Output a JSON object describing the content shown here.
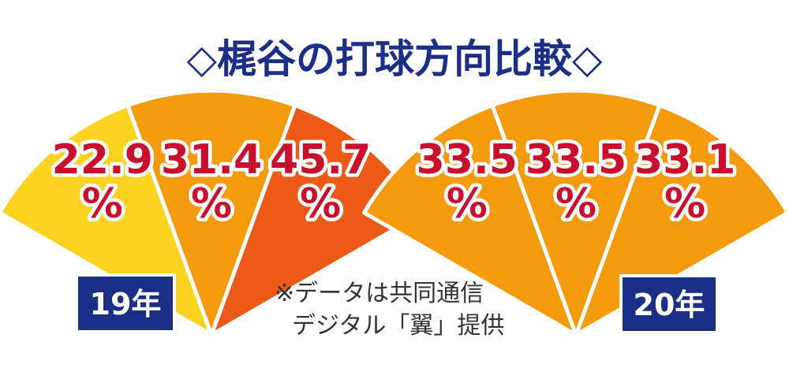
{
  "title": "◇梶谷の打球方向比較◇",
  "note": {
    "line1": "※データは共同通信",
    "line2": "デジタル「翼」提供"
  },
  "colors": {
    "title": "#1c2f86",
    "percent_text": "#c8102e",
    "year_badge": "#1c2f86"
  },
  "chart_data": [
    {
      "type": "pie",
      "year_label": "19年",
      "unit": "%",
      "values": [
        22.9,
        31.4,
        45.7
      ],
      "labels": [
        "22.9",
        "31.4",
        "45.7"
      ],
      "colors": [
        "#fcd320",
        "#f39a0e",
        "#eb5b17"
      ]
    },
    {
      "type": "pie",
      "year_label": "20年",
      "unit": "%",
      "values": [
        33.5,
        33.5,
        33.1
      ],
      "labels": [
        "33.5",
        "33.5",
        "33.1"
      ],
      "colors": [
        "#f39a0e",
        "#f39a0e",
        "#f39a0e"
      ]
    }
  ]
}
